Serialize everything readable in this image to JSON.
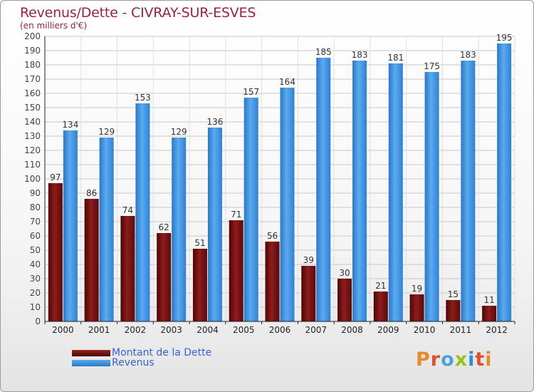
{
  "chart_data": {
    "type": "bar",
    "title": "Revenus/Dette - CIVRAY-SUR-ESVES",
    "subtitle": "(en milliers d'€)",
    "categories": [
      "2000",
      "2001",
      "2002",
      "2003",
      "2004",
      "2005",
      "2006",
      "2007",
      "2008",
      "2009",
      "2010",
      "2011",
      "2012"
    ],
    "series": [
      {
        "name": "Montant de la Dette",
        "color": "#7a1515",
        "values": [
          97,
          86,
          74,
          62,
          51,
          71,
          56,
          39,
          30,
          21,
          19,
          15,
          11
        ]
      },
      {
        "name": "Revenus",
        "color": "#3d8fd8",
        "values": [
          134,
          129,
          153,
          129,
          136,
          157,
          164,
          185,
          183,
          181,
          175,
          183,
          195
        ]
      }
    ],
    "ylim": [
      0,
      200
    ],
    "ytick_step": 10,
    "grid": true,
    "legend_position": "bottom-left",
    "data_labels": true
  },
  "logo": {
    "text": "Proxiti",
    "colors": [
      "#e8892a",
      "#e04f2e",
      "#4aa3df",
      "#9ac21e",
      "#2e8fd6",
      "#e04f2e",
      "#e8892a"
    ]
  }
}
